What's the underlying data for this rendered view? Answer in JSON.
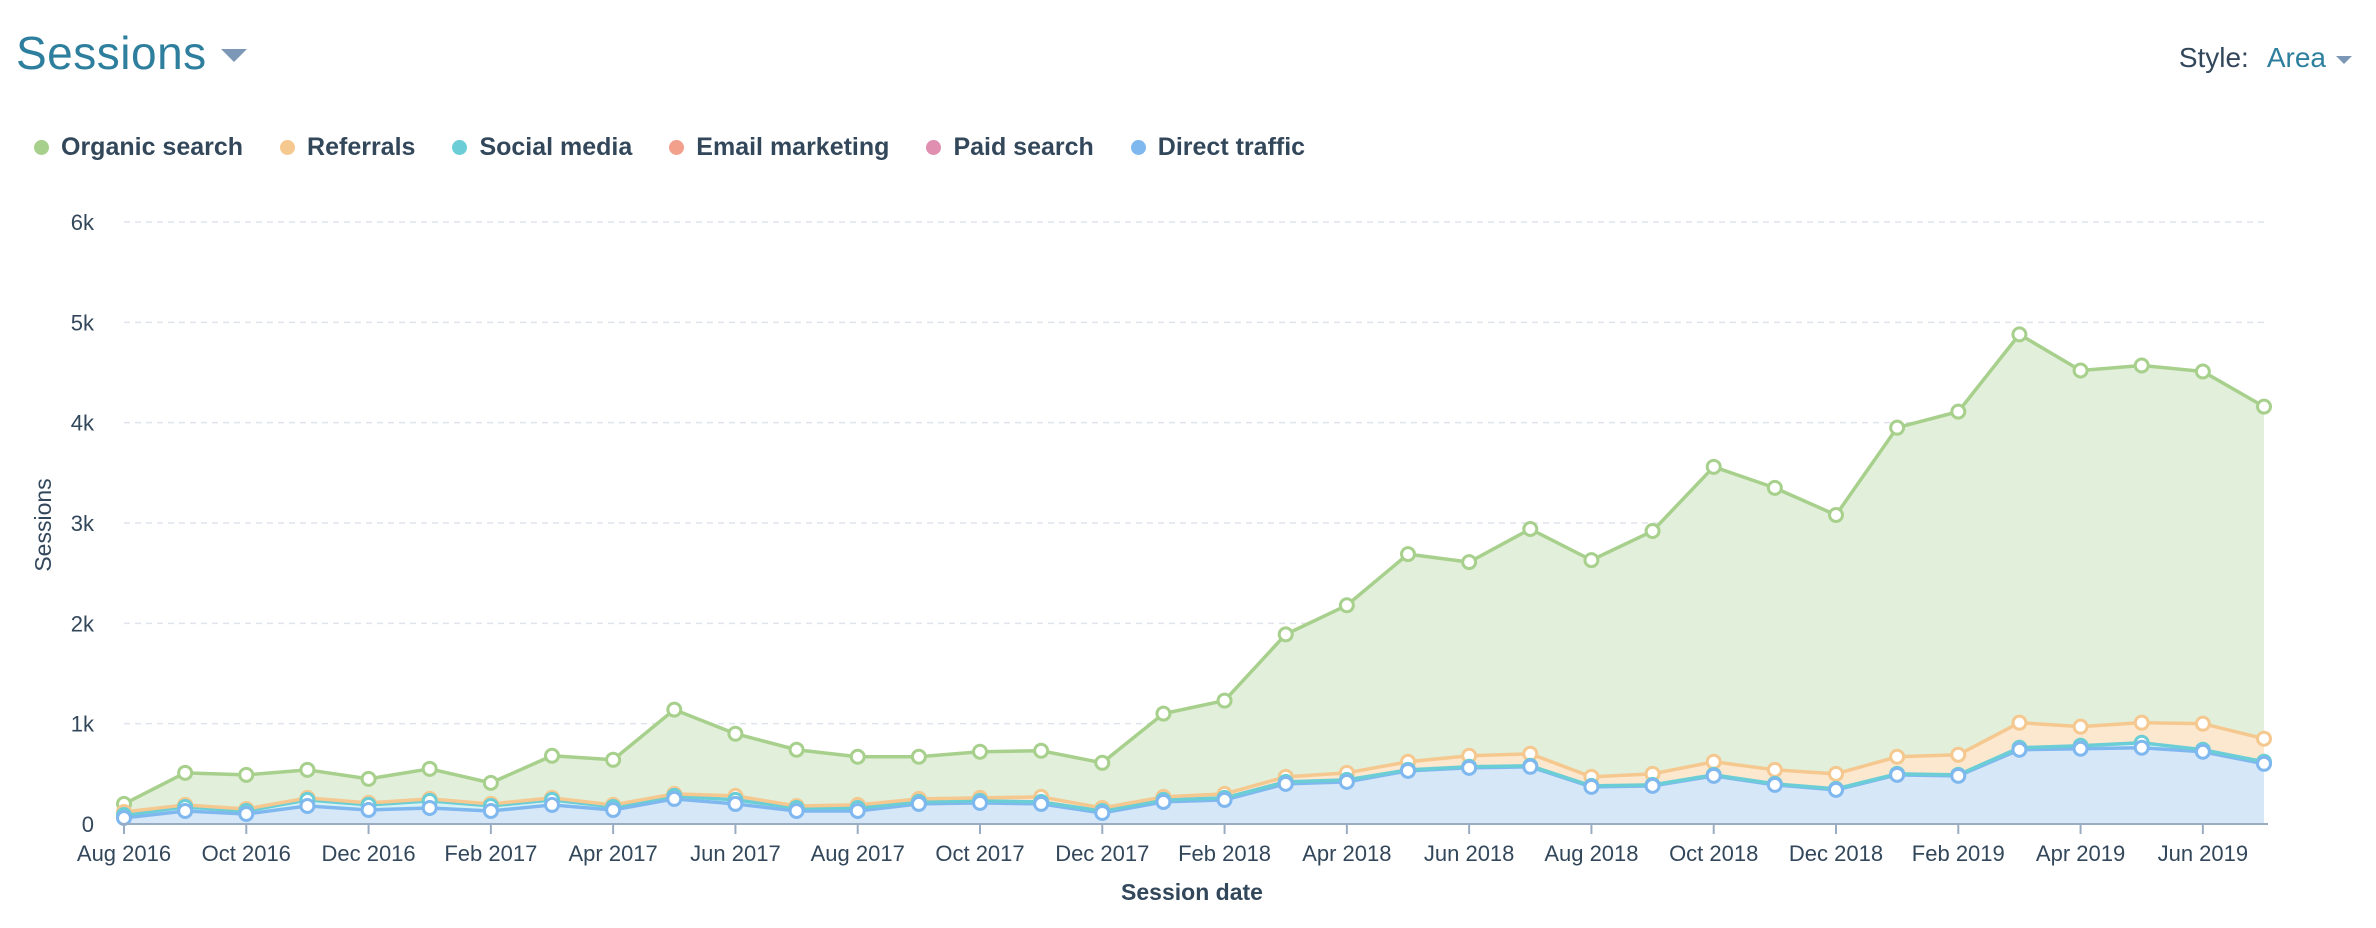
{
  "header": {
    "title": "Sessions",
    "style_label": "Style:",
    "style_value": "Area"
  },
  "chart_data": {
    "type": "area",
    "stacked": true,
    "xlabel": "Session date",
    "ylabel": "Sessions",
    "ylim": [
      0,
      6000
    ],
    "yticks": [
      "0",
      "1k",
      "2k",
      "3k",
      "4k",
      "5k",
      "6k"
    ],
    "grid": true,
    "legend_position": "top-left",
    "x": [
      "Aug 2016",
      "Sep 2016",
      "Oct 2016",
      "Nov 2016",
      "Dec 2016",
      "Jan 2017",
      "Feb 2017",
      "Mar 2017",
      "Apr 2017",
      "May 2017",
      "Jun 2017",
      "Jul 2017",
      "Aug 2017",
      "Sep 2017",
      "Oct 2017",
      "Nov 2017",
      "Dec 2017",
      "Jan 2018",
      "Feb 2018",
      "Mar 2018",
      "Apr 2018",
      "May 2018",
      "Jun 2018",
      "Jul 2018",
      "Aug 2018",
      "Sep 2018",
      "Oct 2018",
      "Nov 2018",
      "Dec 2018",
      "Jan 2019",
      "Feb 2019",
      "Mar 2019",
      "Apr 2019",
      "May 2019",
      "Jun 2019",
      "Jul 2019"
    ],
    "xtick_labels": [
      "Aug 2016",
      "Oct 2016",
      "Dec 2016",
      "Feb 2017",
      "Apr 2017",
      "Jun 2017",
      "Aug 2017",
      "Oct 2017",
      "Dec 2017",
      "Feb 2018",
      "Apr 2018",
      "Jun 2018",
      "Aug 2018",
      "Oct 2018",
      "Dec 2018",
      "Feb 2019",
      "Apr 2019",
      "Jun 2019"
    ],
    "series": [
      {
        "name": "Direct traffic",
        "color": "#7fb7ef",
        "fill": "#d6e7f8",
        "values": [
          60,
          130,
          100,
          180,
          140,
          160,
          130,
          190,
          140,
          250,
          200,
          130,
          130,
          200,
          210,
          200,
          110,
          220,
          240,
          400,
          420,
          530,
          560,
          570,
          370,
          380,
          480,
          390,
          340,
          490,
          480,
          740,
          750,
          760,
          720,
          600
        ]
      },
      {
        "name": "Paid search",
        "color": "#e08fb1",
        "fill": "#f3d6e3",
        "values": [
          0,
          0,
          0,
          0,
          0,
          0,
          0,
          0,
          0,
          0,
          0,
          0,
          0,
          0,
          0,
          0,
          0,
          0,
          0,
          0,
          0,
          0,
          0,
          0,
          0,
          0,
          0,
          0,
          0,
          0,
          0,
          0,
          0,
          0,
          0,
          0
        ]
      },
      {
        "name": "Email marketing",
        "color": "#f2a08c",
        "fill": "#fbe2da",
        "values": [
          0,
          0,
          0,
          0,
          0,
          0,
          0,
          0,
          0,
          0,
          0,
          0,
          0,
          0,
          0,
          0,
          0,
          0,
          0,
          0,
          0,
          0,
          0,
          0,
          0,
          0,
          0,
          0,
          0,
          0,
          0,
          0,
          0,
          0,
          0,
          0
        ]
      },
      {
        "name": "Social media",
        "color": "#6bcdd6",
        "fill": "#d8f2f4",
        "values": [
          30,
          40,
          30,
          60,
          50,
          70,
          50,
          50,
          30,
          30,
          40,
          30,
          30,
          20,
          20,
          20,
          20,
          20,
          20,
          20,
          20,
          10,
          10,
          10,
          10,
          10,
          10,
          10,
          10,
          10,
          10,
          20,
          30,
          50,
          20,
          20
        ]
      },
      {
        "name": "Referrals",
        "color": "#f5c890",
        "fill": "#fce7cf",
        "values": [
          30,
          20,
          20,
          20,
          20,
          20,
          20,
          20,
          20,
          20,
          40,
          20,
          30,
          30,
          30,
          50,
          30,
          30,
          40,
          50,
          70,
          80,
          110,
          120,
          90,
          110,
          130,
          140,
          150,
          170,
          200,
          250,
          190,
          200,
          260,
          230
        ]
      },
      {
        "name": "Organic search",
        "color": "#a8d08d",
        "fill": "#e2efda",
        "values": [
          80,
          320,
          340,
          280,
          240,
          300,
          210,
          420,
          450,
          840,
          620,
          560,
          480,
          420,
          460,
          460,
          450,
          830,
          930,
          1420,
          1670,
          2070,
          1930,
          2240,
          2160,
          2420,
          2940,
          2810,
          2580,
          3280,
          3420,
          3870,
          3550,
          3560,
          3510,
          3310
        ]
      }
    ]
  },
  "legend": [
    {
      "label": "Organic search",
      "color": "#a8d08d"
    },
    {
      "label": "Referrals",
      "color": "#f5c890"
    },
    {
      "label": "Social media",
      "color": "#6bcdd6"
    },
    {
      "label": "Email marketing",
      "color": "#f2a08c"
    },
    {
      "label": "Paid search",
      "color": "#e08fb1"
    },
    {
      "label": "Direct traffic",
      "color": "#7fb7ef"
    }
  ]
}
